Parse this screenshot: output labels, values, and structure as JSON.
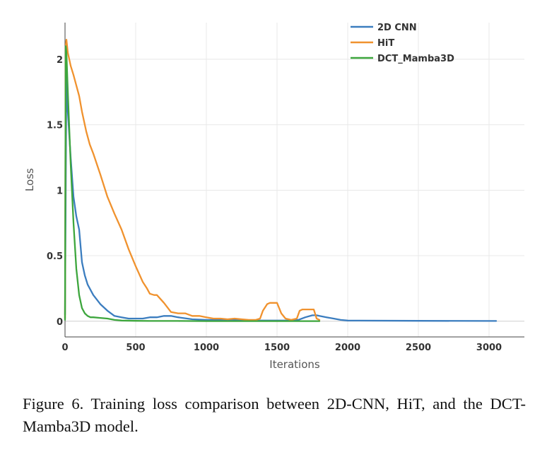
{
  "chart_data": {
    "type": "line",
    "xlabel": "Iterations",
    "ylabel": "Loss",
    "xlim": [
      0,
      3250
    ],
    "ylim": [
      -0.12,
      2.28
    ],
    "xticks": [
      0,
      500,
      1000,
      1500,
      2000,
      2500,
      3000
    ],
    "yticks": [
      0,
      0.5,
      1,
      1.5,
      2
    ],
    "ytick_labels": [
      "0",
      "0.5",
      "1",
      "1.5",
      "2"
    ],
    "grid": true,
    "legend_position": "top-right",
    "series": [
      {
        "name": "2D CNN",
        "color": "#3b7dbf",
        "x": [
          0,
          10,
          20,
          40,
          60,
          80,
          100,
          120,
          140,
          160,
          200,
          250,
          300,
          350,
          400,
          450,
          500,
          550,
          600,
          650,
          700,
          750,
          800,
          900,
          1000,
          1100,
          1200,
          1300,
          1400,
          1500,
          1600,
          1650,
          1700,
          1750,
          1780,
          1800,
          1850,
          1900,
          1950,
          2000,
          2500,
          3000,
          3050
        ],
        "y": [
          0.05,
          1.9,
          1.6,
          1.25,
          0.95,
          0.8,
          0.7,
          0.45,
          0.35,
          0.28,
          0.2,
          0.13,
          0.08,
          0.04,
          0.03,
          0.02,
          0.02,
          0.02,
          0.03,
          0.03,
          0.04,
          0.04,
          0.03,
          0.015,
          0.01,
          0.01,
          0.01,
          0.005,
          0.005,
          0.005,
          0.005,
          0.01,
          0.03,
          0.045,
          0.045,
          0.04,
          0.03,
          0.02,
          0.01,
          0.005,
          0.003,
          0.002,
          0.002
        ]
      },
      {
        "name": "HiT",
        "color": "#f0922e",
        "x": [
          0,
          5,
          10,
          20,
          30,
          40,
          60,
          80,
          100,
          120,
          150,
          175,
          200,
          250,
          300,
          350,
          400,
          450,
          500,
          550,
          580,
          600,
          630,
          650,
          700,
          750,
          800,
          850,
          900,
          950,
          1000,
          1050,
          1100,
          1150,
          1200,
          1250,
          1300,
          1350,
          1380,
          1400,
          1430,
          1450,
          1480,
          1500,
          1530,
          1560,
          1600,
          1640,
          1660,
          1680,
          1700,
          1730,
          1760,
          1780,
          1800
        ],
        "y": [
          0.02,
          2.1,
          2.15,
          2.05,
          2.0,
          1.95,
          1.88,
          1.8,
          1.72,
          1.6,
          1.45,
          1.35,
          1.28,
          1.12,
          0.95,
          0.82,
          0.7,
          0.55,
          0.42,
          0.3,
          0.25,
          0.21,
          0.2,
          0.2,
          0.14,
          0.07,
          0.06,
          0.06,
          0.04,
          0.04,
          0.03,
          0.02,
          0.02,
          0.015,
          0.02,
          0.015,
          0.01,
          0.01,
          0.02,
          0.08,
          0.13,
          0.14,
          0.14,
          0.14,
          0.06,
          0.02,
          0.01,
          0.02,
          0.08,
          0.09,
          0.09,
          0.09,
          0.09,
          0.02,
          0.01
        ]
      },
      {
        "name": "DCT_Mamba3D",
        "color": "#3da63d",
        "x": [
          0,
          5,
          10,
          20,
          40,
          60,
          80,
          100,
          120,
          140,
          160,
          180,
          200,
          250,
          300,
          350,
          400,
          500,
          600,
          800,
          1000,
          1200,
          1400,
          1600,
          1700,
          1800
        ],
        "y": [
          0.01,
          2.1,
          2.05,
          1.75,
          1.2,
          0.75,
          0.4,
          0.2,
          0.1,
          0.06,
          0.04,
          0.03,
          0.03,
          0.025,
          0.02,
          0.01,
          0.005,
          0.003,
          0.002,
          0.002,
          0.001,
          0.001,
          0.001,
          0.001,
          0.001,
          0.001
        ]
      }
    ]
  },
  "caption": "Figure 6.  Training loss comparison between 2D-CNN, HiT, and the DCT-Mamba3D model."
}
